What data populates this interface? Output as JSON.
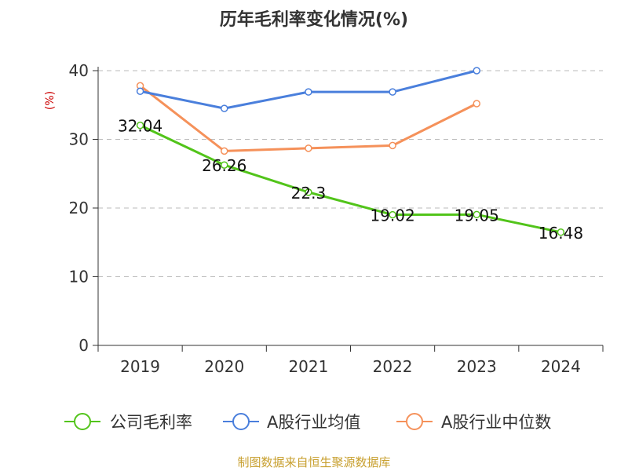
{
  "chart_data": {
    "type": "line",
    "title": "历年毛利率变化情况(%)",
    "ylabel": "(%)",
    "xlabel": "",
    "categories": [
      "2019",
      "2020",
      "2021",
      "2022",
      "2023",
      "2024"
    ],
    "ylim": [
      0,
      40
    ],
    "yticks": [
      0,
      10,
      20,
      30,
      40
    ],
    "grid": true,
    "legend_position": "bottom",
    "series": [
      {
        "name": "公司毛利率",
        "color": "#52c41a",
        "values": [
          32.04,
          26.26,
          22.3,
          19.02,
          19.05,
          16.48
        ],
        "labels": [
          "32.04",
          "26.26",
          "22.3",
          "19.02",
          "19.05",
          "16.48"
        ]
      },
      {
        "name": "A股行业均值",
        "color": "#4a7fdc",
        "values": [
          37.0,
          34.5,
          36.9,
          36.9,
          40.0,
          null
        ],
        "labels": null
      },
      {
        "name": "A股行业中位数",
        "color": "#f5915a",
        "values": [
          37.8,
          28.3,
          28.7,
          29.1,
          35.2,
          null
        ],
        "labels": null
      }
    ]
  },
  "source": "制图数据来自恒生聚源数据库",
  "colors": {
    "title": "#333333",
    "ylabel": "#cc0000",
    "source": "#c8a030",
    "axis": "#333333",
    "grid": "#bbbbbb"
  }
}
